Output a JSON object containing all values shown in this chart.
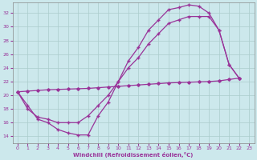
{
  "bg_color": "#cce8ec",
  "line_color": "#993399",
  "grid_color": "#aacccc",
  "xlabel": "Windchill (Refroidissement éolien,°C)",
  "xlim": [
    -0.5,
    23.5
  ],
  "ylim": [
    13.0,
    33.5
  ],
  "xticks": [
    0,
    1,
    2,
    3,
    4,
    5,
    6,
    7,
    8,
    9,
    10,
    11,
    12,
    13,
    14,
    15,
    16,
    17,
    18,
    19,
    20,
    21,
    22,
    23
  ],
  "yticks": [
    14,
    16,
    18,
    20,
    22,
    24,
    26,
    28,
    30,
    32
  ],
  "curve1_x": [
    0,
    1,
    2,
    3,
    4,
    5,
    6,
    7,
    8,
    9,
    10,
    11,
    12,
    13,
    14,
    15,
    16,
    17,
    18,
    19,
    20,
    21,
    22
  ],
  "curve1_y": [
    20.5,
    18.5,
    16.5,
    16.0,
    15.0,
    14.5,
    14.2,
    14.2,
    17.0,
    19.0,
    22.0,
    25.0,
    27.0,
    29.5,
    31.0,
    32.5,
    32.8,
    33.2,
    33.0,
    32.0,
    29.5,
    24.5,
    22.5
  ],
  "curve2_x": [
    0,
    1,
    2,
    3,
    4,
    5,
    6,
    7,
    8,
    9,
    10,
    11,
    12,
    13,
    14,
    15,
    16,
    17,
    18,
    19,
    20,
    21,
    22
  ],
  "curve2_y": [
    20.5,
    18.0,
    16.8,
    16.5,
    16.0,
    16.0,
    16.0,
    17.0,
    18.5,
    20.0,
    22.0,
    24.0,
    25.5,
    27.5,
    29.0,
    30.5,
    31.0,
    31.5,
    31.5,
    31.5,
    29.5,
    24.5,
    22.5
  ],
  "curve3_x": [
    0,
    1,
    2,
    3,
    4,
    5,
    6,
    7,
    8,
    9,
    10,
    11,
    12,
    13,
    14,
    15,
    16,
    17,
    18,
    19,
    20,
    21,
    22
  ],
  "curve3_y": [
    20.5,
    20.6,
    20.7,
    20.8,
    20.85,
    20.9,
    20.95,
    21.0,
    21.1,
    21.2,
    21.3,
    21.4,
    21.5,
    21.6,
    21.7,
    21.8,
    21.85,
    21.9,
    21.95,
    22.0,
    22.1,
    22.3,
    22.5
  ]
}
